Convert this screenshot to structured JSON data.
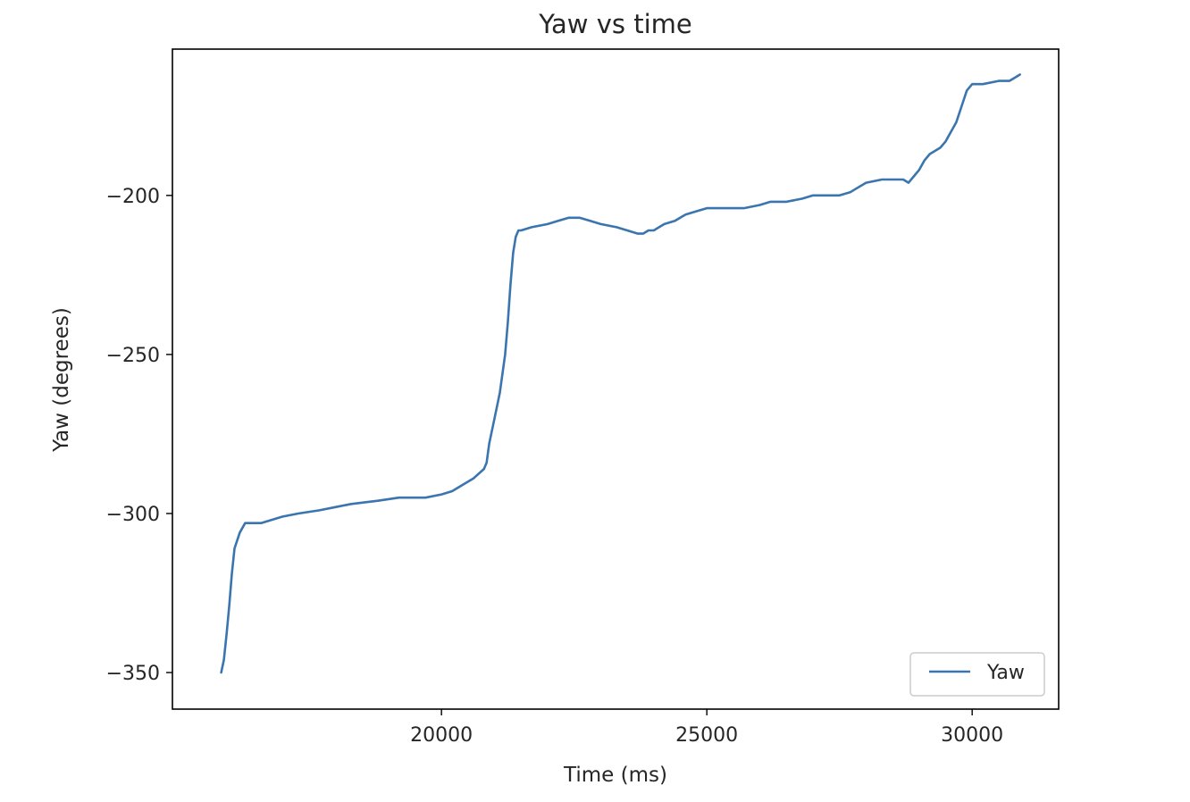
{
  "chart_data": {
    "type": "line",
    "title": "Yaw vs time",
    "xlabel": "Time (ms)",
    "ylabel": "Yaw (degrees)",
    "xlim": [
      14930,
      31630
    ],
    "ylim": [
      -361.5,
      -154
    ],
    "x_ticks": [
      20000,
      25000,
      30000
    ],
    "y_ticks": [
      -200,
      -250,
      -300,
      -350
    ],
    "x_tick_labels": [
      "20000",
      "25000",
      "30000"
    ],
    "y_tick_labels": [
      "−200",
      "−250",
      "−300",
      "−350"
    ],
    "grid": false,
    "legend": {
      "position": "lower-right",
      "entries": [
        "Yaw"
      ]
    },
    "series": [
      {
        "name": "Yaw",
        "color": "#3a75b0",
        "x": [
          15850,
          15900,
          15950,
          16000,
          16050,
          16100,
          16200,
          16300,
          16600,
          16800,
          17000,
          17300,
          17700,
          18000,
          18300,
          18800,
          19200,
          19700,
          20000,
          20200,
          20400,
          20600,
          20800,
          20850,
          20900,
          21000,
          21100,
          21200,
          21250,
          21300,
          21350,
          21400,
          21450,
          21500,
          21700,
          22000,
          22200,
          22400,
          22600,
          22800,
          23000,
          23300,
          23500,
          23700,
          23800,
          23900,
          24000,
          24100,
          24200,
          24400,
          24600,
          24800,
          25000,
          25300,
          25700,
          26000,
          26200,
          26500,
          26800,
          27000,
          27300,
          27500,
          27700,
          27800,
          28000,
          28300,
          28500,
          28700,
          28800,
          28900,
          29000,
          29100,
          29200,
          29400,
          29500,
          29600,
          29700,
          29800,
          29900,
          30000,
          30200,
          30500,
          30700,
          30800,
          30900
        ],
        "y": [
          -350,
          -346,
          -338,
          -329,
          -319,
          -311,
          -306,
          -303,
          -303,
          -302,
          -301,
          -300,
          -299,
          -298,
          -297,
          -296,
          -295,
          -295,
          -294,
          -293,
          -291,
          -289,
          -286,
          -284,
          -278,
          -270,
          -262,
          -250,
          -240,
          -228,
          -218,
          -213,
          -211,
          -211,
          -210,
          -209,
          -208,
          -207,
          -207,
          -208,
          -209,
          -210,
          -211,
          -212,
          -212,
          -211,
          -211,
          -210,
          -209,
          -208,
          -206,
          -205,
          -204,
          -204,
          -204,
          -203,
          -202,
          -202,
          -201,
          -200,
          -200,
          -200,
          -199,
          -198,
          -196,
          -195,
          -195,
          -195,
          -196,
          -194,
          -192,
          -189,
          -187,
          -185,
          -183,
          -180,
          -177,
          -172,
          -167,
          -165,
          -165,
          -164,
          -164,
          -163,
          -162
        ]
      }
    ]
  }
}
